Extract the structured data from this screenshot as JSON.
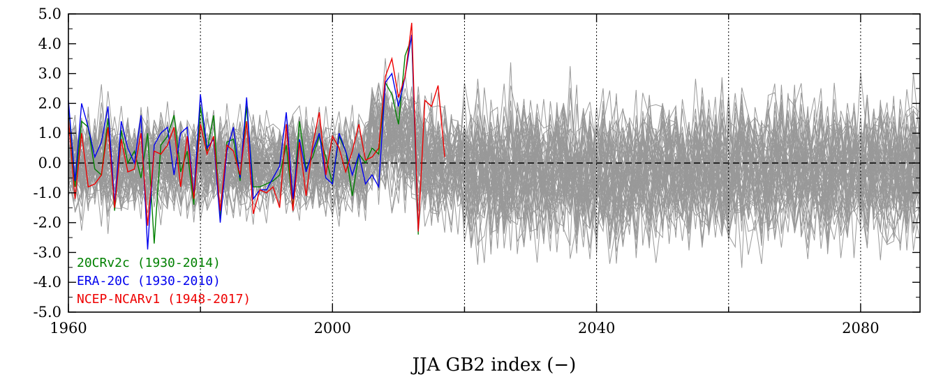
{
  "chart_data": {
    "type": "line",
    "title": "",
    "xlabel": "JJA GB2 index (−)",
    "ylabel": "",
    "xlim": [
      1960,
      2089
    ],
    "ylim": [
      -5,
      5
    ],
    "x_ticks": [
      1960,
      2000,
      2040,
      2080
    ],
    "x_tick_labels": [
      "1960",
      "2000",
      "2040",
      "2080"
    ],
    "x_minor_ticks": [
      1980,
      2020,
      2060
    ],
    "y_ticks": [
      5,
      4,
      3,
      2,
      1,
      0,
      -1,
      -2,
      -3,
      -4,
      -5
    ],
    "y_tick_labels": [
      "5.0",
      "4.0",
      "3.0",
      "2.0",
      "1.0",
      "0.0",
      "-1.0",
      "-2.0",
      "-3.0",
      "-4.0",
      "-5.0"
    ],
    "grid": "vertical dotted lines every 20 years; dashed horizontal line at 0",
    "legend_placement": "lower-left",
    "ensemble": {
      "description": "grey ensemble of model members, 1960-2089",
      "color": "#999999",
      "member_count": 60,
      "x_start": 1960,
      "x_end": 2089
    },
    "series": [
      {
        "name": "20CRv2c (1930-2014)",
        "color": "#008000",
        "x": [
          1960,
          1961,
          1962,
          1963,
          1964,
          1965,
          1966,
          1967,
          1968,
          1969,
          1970,
          1971,
          1972,
          1973,
          1974,
          1975,
          1976,
          1977,
          1978,
          1979,
          1980,
          1981,
          1982,
          1983,
          1984,
          1985,
          1986,
          1987,
          1988,
          1989,
          1990,
          1991,
          1992,
          1993,
          1994,
          1995,
          1996,
          1997,
          1998,
          1999,
          2000,
          2001,
          2002,
          2003,
          2004,
          2005,
          2006,
          2007,
          2008,
          2009,
          2010,
          2011,
          2012,
          2013
        ],
        "y": [
          2.0,
          -0.8,
          1.4,
          1.2,
          -0.2,
          -0.4,
          1.5,
          -1.6,
          1.1,
          0.0,
          0.4,
          -0.5,
          1.0,
          -2.7,
          0.6,
          0.9,
          1.6,
          -0.3,
          0.4,
          -1.4,
          1.9,
          0.4,
          1.6,
          -1.9,
          0.7,
          0.8,
          -0.6,
          1.9,
          -0.8,
          -0.8,
          -0.7,
          -0.6,
          -0.4,
          0.6,
          -1.5,
          1.4,
          -0.2,
          0.2,
          0.9,
          0.2,
          -0.7,
          0.9,
          0.4,
          -1.1,
          0.3,
          0.0,
          0.5,
          0.3,
          2.7,
          2.3,
          1.3,
          3.6,
          4.2,
          -2.4
        ]
      },
      {
        "name": "ERA-20C (1930-2010)",
        "color": "#0000ee",
        "x": [
          1960,
          1961,
          1962,
          1963,
          1964,
          1965,
          1966,
          1967,
          1968,
          1969,
          1970,
          1971,
          1972,
          1973,
          1974,
          1975,
          1976,
          1977,
          1978,
          1979,
          1980,
          1981,
          1982,
          1983,
          1984,
          1985,
          1986,
          1987,
          1988,
          1989,
          1990,
          1991,
          1992,
          1993,
          1994,
          1995,
          1996,
          1997,
          1998,
          1999,
          2000,
          2001,
          2002,
          2003,
          2004,
          2005,
          2006,
          2007,
          2008,
          2009,
          2010,
          2011,
          2012,
          2013
        ],
        "y": [
          2.1,
          -0.6,
          2.0,
          1.2,
          0.2,
          0.7,
          1.9,
          -1.4,
          1.4,
          0.5,
          0.0,
          1.6,
          -2.9,
          0.6,
          1.0,
          1.2,
          -0.4,
          1.0,
          1.2,
          -1.1,
          2.3,
          0.5,
          0.8,
          -2.0,
          0.4,
          1.2,
          -0.5,
          2.2,
          -1.2,
          -0.9,
          -0.9,
          -0.5,
          -0.1,
          1.7,
          -1.2,
          0.8,
          -0.3,
          0.4,
          1.0,
          -0.5,
          -0.7,
          1.0,
          0.4,
          -0.4,
          0.3,
          -0.7,
          -0.4,
          -0.8,
          2.7,
          3.0,
          1.9,
          2.9,
          4.3,
          -2.3
        ]
      },
      {
        "name": "NCEP-NCARv1 (1948-2017)",
        "color": "#ee0000",
        "x": [
          1960,
          1961,
          1962,
          1963,
          1964,
          1965,
          1966,
          1967,
          1968,
          1969,
          1970,
          1971,
          1972,
          1973,
          1974,
          1975,
          1976,
          1977,
          1978,
          1979,
          1980,
          1981,
          1982,
          1983,
          1984,
          1985,
          1986,
          1987,
          1988,
          1989,
          1990,
          1991,
          1992,
          1993,
          1994,
          1995,
          1996,
          1997,
          1998,
          1999,
          2000,
          2001,
          2002,
          2003,
          2004,
          2005,
          2006,
          2007,
          2008,
          2009,
          2010,
          2011,
          2012,
          2013,
          2014,
          2015,
          2016,
          2017
        ],
        "y": [
          1.5,
          -1.2,
          1.0,
          -0.8,
          -0.7,
          -0.4,
          1.2,
          -1.5,
          0.8,
          -0.3,
          -0.2,
          1.0,
          -2.1,
          0.4,
          0.3,
          0.6,
          1.2,
          -0.8,
          0.9,
          -1.2,
          1.3,
          0.3,
          0.9,
          -1.6,
          0.6,
          0.4,
          -0.4,
          1.4,
          -1.7,
          -0.9,
          -1.0,
          -0.8,
          -1.5,
          1.3,
          -1.6,
          0.7,
          -1.1,
          0.6,
          1.7,
          -0.4,
          0.9,
          0.5,
          -0.3,
          0.4,
          1.3,
          0.1,
          0.2,
          0.5,
          2.9,
          3.5,
          2.2,
          2.9,
          4.7,
          -2.3,
          2.1,
          1.9,
          2.6,
          0.2
        ]
      }
    ]
  }
}
